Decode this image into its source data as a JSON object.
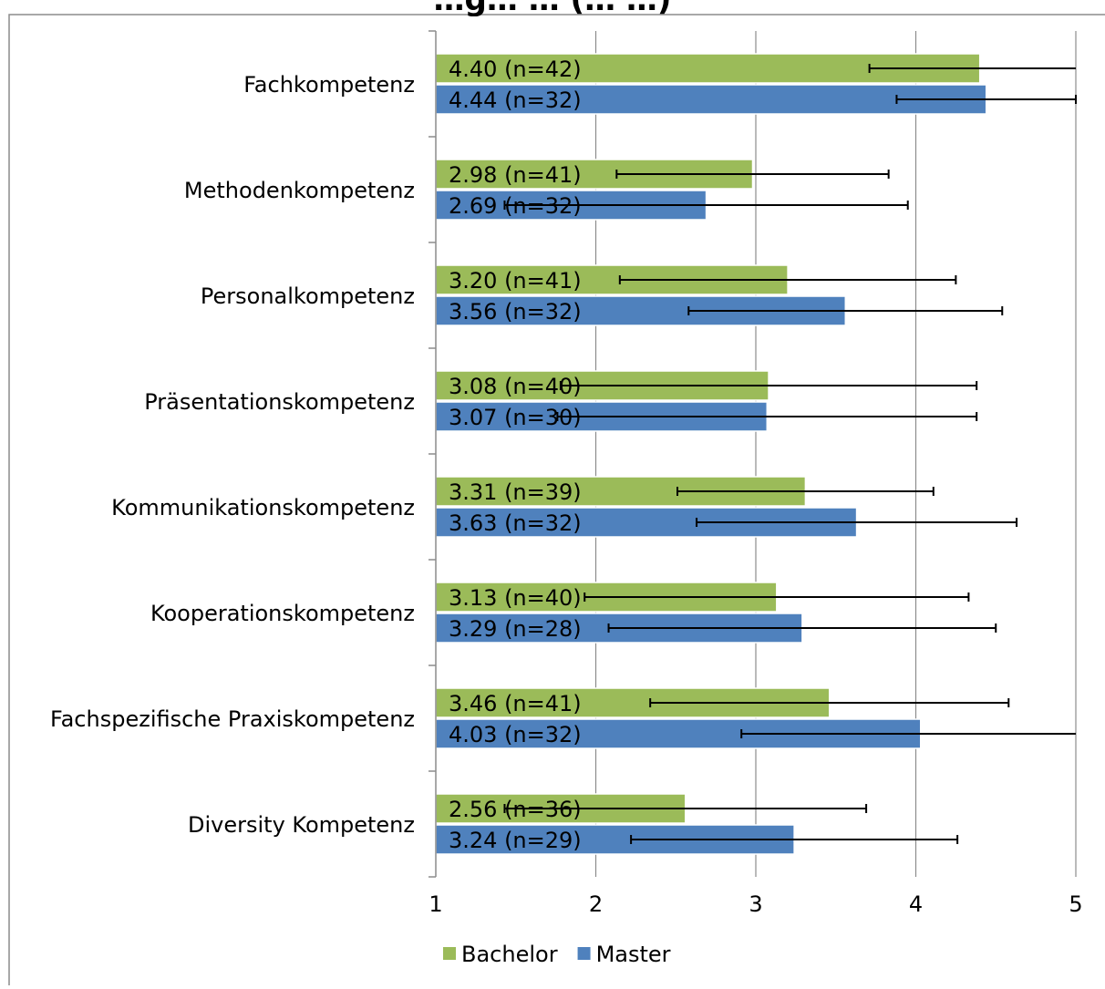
{
  "title_partial": "…g… … (… …)",
  "chart_data": {
    "type": "bar",
    "orientation": "horizontal",
    "categories": [
      "Fachkompetenz",
      "Methodenkompetenz",
      "Personalkompetenz",
      "Präsentationskompetenz",
      "Kommunikationskompetenz",
      "Kooperationskompetenz",
      "Fachspezifische Praxiskompetenz",
      "Diversity Kompetenz"
    ],
    "series": [
      {
        "name": "Bachelor",
        "color": "#9bbb59",
        "values": [
          4.4,
          2.98,
          3.2,
          3.08,
          3.31,
          3.13,
          3.46,
          2.56
        ],
        "labels": [
          "4.40 (n=42)",
          "2.98 (n=41)",
          "3.20 (n=41)",
          "3.08 (n=40)",
          "3.31 (n=39)",
          "3.13 (n=40)",
          "3.46 (n=41)",
          "2.56 (n=36)"
        ],
        "error": [
          0.69,
          0.85,
          1.05,
          1.3,
          0.8,
          1.2,
          1.12,
          1.13
        ]
      },
      {
        "name": "Master",
        "color": "#4f81bd",
        "values": [
          4.44,
          2.69,
          3.56,
          3.07,
          3.63,
          3.29,
          4.03,
          3.24
        ],
        "labels": [
          "4.44 (n=32)",
          "2.69 (n=32)",
          "3.56 (n=32)",
          "3.07 (n=30)",
          "3.63 (n=32)",
          "3.29 (n=28)",
          "4.03 (n=32)",
          "3.24 (n=29)"
        ],
        "error": [
          0.56,
          1.26,
          0.98,
          1.31,
          1.0,
          1.21,
          1.12,
          1.02
        ]
      }
    ],
    "xlim": [
      1,
      5
    ],
    "xticks": [
      "1",
      "2",
      "3",
      "4",
      "5"
    ],
    "grid": true,
    "legend": "bottom"
  }
}
